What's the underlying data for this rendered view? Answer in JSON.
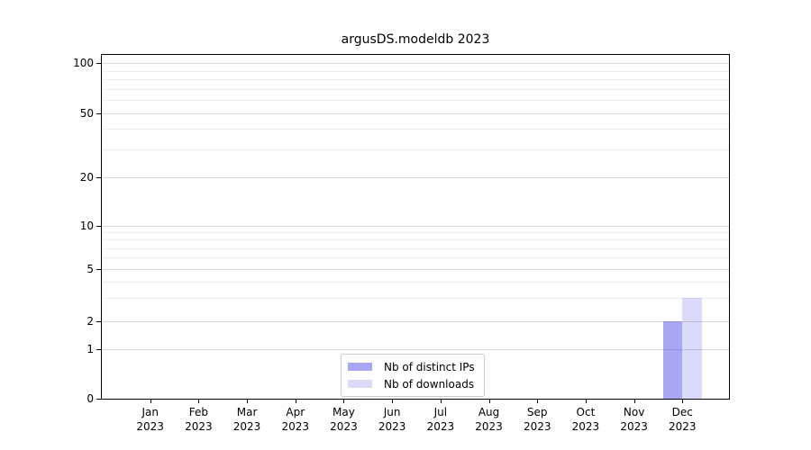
{
  "chart_data": {
    "type": "bar",
    "title": "argusDS.modeldb 2023",
    "x_tick_labels": [
      {
        "month": "Jan",
        "year": "2023"
      },
      {
        "month": "Feb",
        "year": "2023"
      },
      {
        "month": "Mar",
        "year": "2023"
      },
      {
        "month": "Apr",
        "year": "2023"
      },
      {
        "month": "May",
        "year": "2023"
      },
      {
        "month": "Jun",
        "year": "2023"
      },
      {
        "month": "Jul",
        "year": "2023"
      },
      {
        "month": "Aug",
        "year": "2023"
      },
      {
        "month": "Sep",
        "year": "2023"
      },
      {
        "month": "Oct",
        "year": "2023"
      },
      {
        "month": "Nov",
        "year": "2023"
      },
      {
        "month": "Dec",
        "year": "2023"
      }
    ],
    "series": [
      {
        "name": "Nb of distinct IPs",
        "color": "rgba(60,60,235,0.45)",
        "values": [
          0,
          0,
          0,
          0,
          0,
          0,
          0,
          0,
          0,
          0,
          0,
          2
        ]
      },
      {
        "name": "Nb of downloads",
        "color": "rgba(60,60,235,0.19)",
        "values": [
          0,
          0,
          0,
          0,
          0,
          0,
          0,
          0,
          0,
          0,
          0,
          3
        ]
      }
    ],
    "y_axis": {
      "scale": "symlog",
      "major_ticks": [
        0,
        1,
        2,
        5,
        10,
        20,
        50,
        100
      ],
      "minor_ticks": [
        3,
        4,
        6,
        7,
        8,
        9,
        30,
        40,
        60,
        70,
        80,
        90
      ],
      "ylim": [
        0,
        110
      ]
    },
    "legend_position": "lower center",
    "grid": true,
    "colors": {
      "grid_major": "#d9d9d9",
      "grid_minor": "#ededed",
      "spine": "#000000"
    }
  }
}
